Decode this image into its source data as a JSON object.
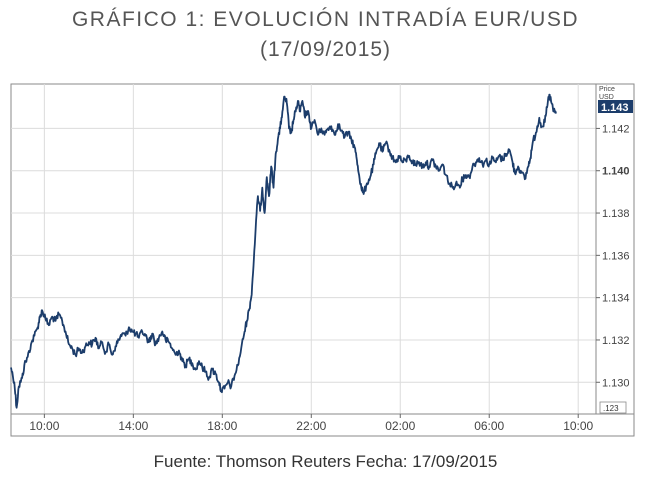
{
  "header": {
    "title": "GRÁFICO 1: EVOLUCIÓN INTRADÍA EUR/USD",
    "subtitle": "(17/09/2015)"
  },
  "footer": {
    "source": "Fuente: Thomson Reuters Fecha: 17/09/2015"
  },
  "colors": {
    "line": "#1c3d6b",
    "grid": "#dcdcdc",
    "frame": "#8a8a8a",
    "text": "#444444",
    "badge_bg": "#1c3d6b",
    "badge_text": "#ffffff"
  },
  "chart_data": {
    "type": "line",
    "axis_header": [
      "Price",
      "USD"
    ],
    "corner_label": ".123",
    "xlim": [
      8.5,
      34.8
    ],
    "ylim": [
      1.1285,
      1.1441
    ],
    "y_axis_side": "right",
    "grid": true,
    "x_ticks": [
      {
        "x": 10,
        "label": "10:00"
      },
      {
        "x": 14,
        "label": "14:00"
      },
      {
        "x": 18,
        "label": "18:00"
      },
      {
        "x": 22,
        "label": "22:00"
      },
      {
        "x": 26,
        "label": "02:00"
      },
      {
        "x": 30,
        "label": "06:00"
      },
      {
        "x": 34,
        "label": "10:00"
      }
    ],
    "y_ticks": [
      {
        "y": 1.13,
        "label": "1.130",
        "bold": false
      },
      {
        "y": 1.132,
        "label": "1.132",
        "bold": false
      },
      {
        "y": 1.134,
        "label": "1.134",
        "bold": false
      },
      {
        "y": 1.136,
        "label": "1.136",
        "bold": false
      },
      {
        "y": 1.138,
        "label": "1.138",
        "bold": false
      },
      {
        "y": 1.14,
        "label": "1.140",
        "bold": true
      },
      {
        "y": 1.142,
        "label": "1.142",
        "bold": false
      }
    ],
    "last_price": {
      "y": 1.1427,
      "label": "1.143"
    },
    "series": [
      {
        "color": "#1c3d6b",
        "points": [
          [
            8.5,
            1.1307
          ],
          [
            8.65,
            1.13
          ],
          [
            8.75,
            1.1288
          ],
          [
            8.85,
            1.1298
          ],
          [
            9.0,
            1.1302
          ],
          [
            9.1,
            1.1308
          ],
          [
            9.25,
            1.1312
          ],
          [
            9.4,
            1.1318
          ],
          [
            9.55,
            1.1322
          ],
          [
            9.7,
            1.1326
          ],
          [
            9.8,
            1.1331
          ],
          [
            9.9,
            1.1334
          ],
          [
            10.05,
            1.133
          ],
          [
            10.2,
            1.1327
          ],
          [
            10.35,
            1.1331
          ],
          [
            10.5,
            1.1329
          ],
          [
            10.65,
            1.1332
          ],
          [
            10.8,
            1.1329
          ],
          [
            10.95,
            1.1324
          ],
          [
            11.1,
            1.1318
          ],
          [
            11.25,
            1.1316
          ],
          [
            11.4,
            1.1313
          ],
          [
            11.55,
            1.1316
          ],
          [
            11.7,
            1.1314
          ],
          [
            11.85,
            1.1317
          ],
          [
            12.0,
            1.1319
          ],
          [
            12.15,
            1.1318
          ],
          [
            12.3,
            1.1321
          ],
          [
            12.45,
            1.1316
          ],
          [
            12.6,
            1.1319
          ],
          [
            12.75,
            1.1314
          ],
          [
            12.9,
            1.1318
          ],
          [
            13.05,
            1.1313
          ],
          [
            13.2,
            1.1317
          ],
          [
            13.35,
            1.132
          ],
          [
            13.5,
            1.1323
          ],
          [
            13.65,
            1.1322
          ],
          [
            13.8,
            1.1326
          ],
          [
            13.95,
            1.1324
          ],
          [
            14.1,
            1.1323
          ],
          [
            14.25,
            1.1321
          ],
          [
            14.4,
            1.1324
          ],
          [
            14.55,
            1.1322
          ],
          [
            14.7,
            1.1319
          ],
          [
            14.85,
            1.1323
          ],
          [
            15.0,
            1.1318
          ],
          [
            15.15,
            1.1321
          ],
          [
            15.3,
            1.1324
          ],
          [
            15.45,
            1.132
          ],
          [
            15.6,
            1.1319
          ],
          [
            15.75,
            1.1316
          ],
          [
            15.9,
            1.1313
          ],
          [
            16.05,
            1.1315
          ],
          [
            16.2,
            1.131
          ],
          [
            16.35,
            1.1308
          ],
          [
            16.5,
            1.1311
          ],
          [
            16.65,
            1.1309
          ],
          [
            16.8,
            1.1306
          ],
          [
            16.95,
            1.131
          ],
          [
            17.1,
            1.1307
          ],
          [
            17.25,
            1.1305
          ],
          [
            17.4,
            1.1302
          ],
          [
            17.55,
            1.1306
          ],
          [
            17.7,
            1.1304
          ],
          [
            17.85,
            1.13
          ],
          [
            17.95,
            1.1296
          ],
          [
            18.1,
            1.1297
          ],
          [
            18.25,
            1.13
          ],
          [
            18.4,
            1.1298
          ],
          [
            18.55,
            1.1303
          ],
          [
            18.7,
            1.1308
          ],
          [
            18.85,
            1.1316
          ],
          [
            19.0,
            1.1324
          ],
          [
            19.1,
            1.1329
          ],
          [
            19.2,
            1.1334
          ],
          [
            19.3,
            1.134
          ],
          [
            19.4,
            1.1355
          ],
          [
            19.5,
            1.1373
          ],
          [
            19.6,
            1.1388
          ],
          [
            19.7,
            1.1381
          ],
          [
            19.8,
            1.1392
          ],
          [
            19.9,
            1.138
          ],
          [
            20.0,
            1.1397
          ],
          [
            20.1,
            1.1388
          ],
          [
            20.2,
            1.1402
          ],
          [
            20.3,
            1.1392
          ],
          [
            20.4,
            1.1408
          ],
          [
            20.5,
            1.1415
          ],
          [
            20.6,
            1.142
          ],
          [
            20.7,
            1.1428
          ],
          [
            20.8,
            1.1435
          ],
          [
            20.9,
            1.1432
          ],
          [
            21.0,
            1.142
          ],
          [
            21.1,
            1.1418
          ],
          [
            21.2,
            1.1424
          ],
          [
            21.3,
            1.1428
          ],
          [
            21.4,
            1.1433
          ],
          [
            21.5,
            1.1428
          ],
          [
            21.6,
            1.1433
          ],
          [
            21.7,
            1.1426
          ],
          [
            21.8,
            1.1428
          ],
          [
            21.9,
            1.1426
          ],
          [
            22.0,
            1.142
          ],
          [
            22.15,
            1.1424
          ],
          [
            22.3,
            1.1417
          ],
          [
            22.45,
            1.142
          ],
          [
            22.6,
            1.1417
          ],
          [
            22.75,
            1.142
          ],
          [
            22.9,
            1.1421
          ],
          [
            23.05,
            1.1417
          ],
          [
            23.2,
            1.1422
          ],
          [
            23.35,
            1.1419
          ],
          [
            23.5,
            1.1416
          ],
          [
            23.65,
            1.1418
          ],
          [
            23.8,
            1.1415
          ],
          [
            23.95,
            1.1411
          ],
          [
            24.05,
            1.1405
          ],
          [
            24.15,
            1.1398
          ],
          [
            24.25,
            1.1392
          ],
          [
            24.35,
            1.1389
          ],
          [
            24.5,
            1.1394
          ],
          [
            24.65,
            1.1397
          ],
          [
            24.8,
            1.1403
          ],
          [
            24.9,
            1.1408
          ],
          [
            25.05,
            1.1413
          ],
          [
            25.2,
            1.1409
          ],
          [
            25.35,
            1.1413
          ],
          [
            25.5,
            1.141
          ],
          [
            25.65,
            1.1406
          ],
          [
            25.8,
            1.1404
          ],
          [
            25.95,
            1.1407
          ],
          [
            26.1,
            1.1404
          ],
          [
            26.25,
            1.1405
          ],
          [
            26.4,
            1.1407
          ],
          [
            26.55,
            1.1404
          ],
          [
            26.7,
            1.1403
          ],
          [
            26.85,
            1.1404
          ],
          [
            27.0,
            1.1402
          ],
          [
            27.15,
            1.1404
          ],
          [
            27.3,
            1.1402
          ],
          [
            27.45,
            1.1405
          ],
          [
            27.6,
            1.1402
          ],
          [
            27.75,
            1.14
          ],
          [
            27.9,
            1.1403
          ],
          [
            28.05,
            1.1398
          ],
          [
            28.2,
            1.1394
          ],
          [
            28.35,
            1.1392
          ],
          [
            28.5,
            1.1394
          ],
          [
            28.65,
            1.1393
          ],
          [
            28.8,
            1.1396
          ],
          [
            28.95,
            1.1398
          ],
          [
            29.1,
            1.1397
          ],
          [
            29.25,
            1.1402
          ],
          [
            29.4,
            1.1404
          ],
          [
            29.55,
            1.1406
          ],
          [
            29.7,
            1.1403
          ],
          [
            29.85,
            1.1405
          ],
          [
            30.0,
            1.1403
          ],
          [
            30.15,
            1.1406
          ],
          [
            30.3,
            1.1404
          ],
          [
            30.45,
            1.1407
          ],
          [
            30.6,
            1.1405
          ],
          [
            30.75,
            1.1408
          ],
          [
            30.9,
            1.141
          ],
          [
            31.05,
            1.1404
          ],
          [
            31.15,
            1.1399
          ],
          [
            31.3,
            1.1402
          ],
          [
            31.45,
            1.1399
          ],
          [
            31.6,
            1.1396
          ],
          [
            31.75,
            1.1402
          ],
          [
            31.85,
            1.1406
          ],
          [
            31.95,
            1.1413
          ],
          [
            32.1,
            1.1418
          ],
          [
            32.25,
            1.1425
          ],
          [
            32.35,
            1.1421
          ],
          [
            32.5,
            1.1423
          ],
          [
            32.6,
            1.143
          ],
          [
            32.7,
            1.1436
          ],
          [
            32.8,
            1.1432
          ],
          [
            32.9,
            1.1428
          ],
          [
            33.0,
            1.1427
          ]
        ]
      }
    ]
  }
}
